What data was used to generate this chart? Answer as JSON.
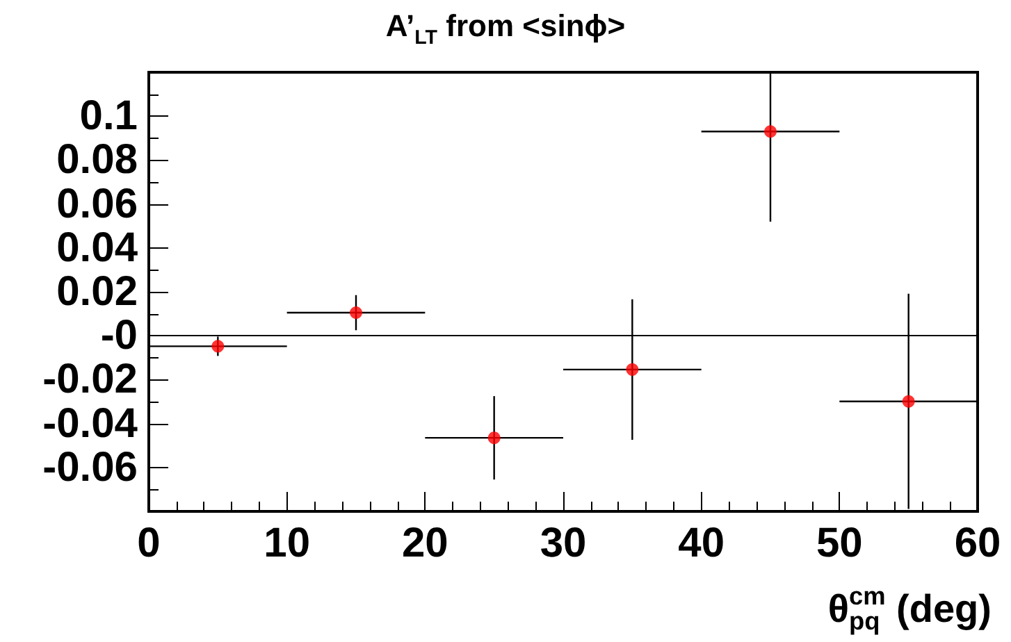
{
  "chart_data": {
    "type": "scatter",
    "title": "A’$_{LT}$ from <sinϕ>",
    "xlabel": "θ$^{cm}$$_{pq}$ (deg)",
    "x": [
      5,
      15,
      25,
      35,
      45,
      55
    ],
    "values": [
      -0.0048,
      0.0105,
      -0.0465,
      -0.0154,
      0.093,
      -0.0299
    ],
    "errors": [
      0.0044,
      0.008,
      0.019,
      0.032,
      0.041,
      0.049
    ],
    "xerrors": [
      5,
      5,
      5,
      5,
      5,
      5
    ],
    "color": "#ff0000",
    "marker": "circle",
    "xlim": [
      0,
      60
    ],
    "xticks": [
      0,
      10,
      20,
      30,
      40,
      50,
      60
    ],
    "ylim": [
      -0.08,
      0.12
    ],
    "yticks": [
      -0.06,
      -0.04,
      -0.02,
      {
        "value": 0,
        "label": "-0"
      },
      0.02,
      0.04,
      0.06,
      0.08,
      0.1
    ],
    "ref_lines": [
      {
        "axis": "y",
        "value": 0,
        "label": null,
        "color": "#000000"
      }
    ],
    "grid": false
  }
}
